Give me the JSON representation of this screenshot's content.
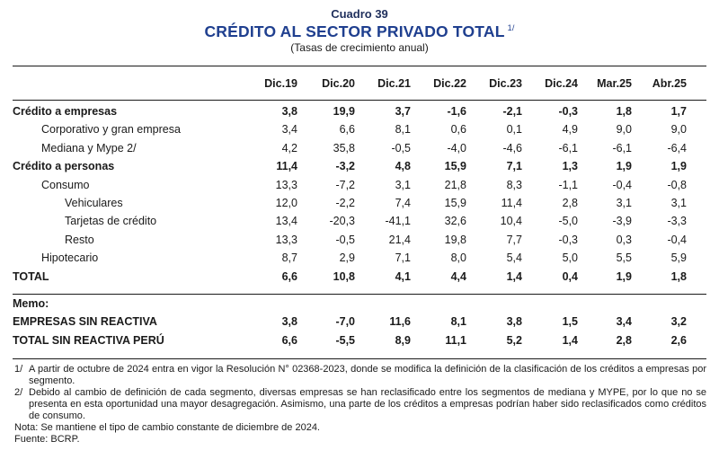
{
  "header": {
    "cuadro": "Cuadro 39",
    "title": "CRÉDITO AL SECTOR PRIVADO TOTAL",
    "title_note": "1/",
    "subtitle": "(Tasas de crecimiento anual)"
  },
  "table": {
    "columns": [
      "Dic.19",
      "Dic.20",
      "Dic.21",
      "Dic.22",
      "Dic.23",
      "Dic.24",
      "Mar.25",
      "Abr.25"
    ],
    "rows": [
      {
        "label": "Crédito a empresas",
        "values": [
          "3,8",
          "19,9",
          "3,7",
          "-1,6",
          "-2,1",
          "-0,3",
          "1,8",
          "1,7"
        ]
      },
      {
        "label": "Corporativo y gran empresa",
        "values": [
          "3,4",
          "6,6",
          "8,1",
          "0,6",
          "0,1",
          "4,9",
          "9,0",
          "9,0"
        ]
      },
      {
        "label": "Mediana y Mype 2/",
        "values": [
          "4,2",
          "35,8",
          "-0,5",
          "-4,0",
          "-4,6",
          "-6,1",
          "-6,1",
          "-6,4"
        ]
      },
      {
        "label": "Crédito a personas",
        "values": [
          "11,4",
          "-3,2",
          "4,8",
          "15,9",
          "7,1",
          "1,3",
          "1,9",
          "1,9"
        ]
      },
      {
        "label": "Consumo",
        "values": [
          "13,3",
          "-7,2",
          "3,1",
          "21,8",
          "8,3",
          "-1,1",
          "-0,4",
          "-0,8"
        ]
      },
      {
        "label": "Vehiculares",
        "values": [
          "12,0",
          "-2,2",
          "7,4",
          "15,9",
          "11,4",
          "2,8",
          "3,1",
          "3,1"
        ]
      },
      {
        "label": "Tarjetas de crédito",
        "values": [
          "13,4",
          "-20,3",
          "-41,1",
          "32,6",
          "10,4",
          "-5,0",
          "-3,9",
          "-3,3"
        ]
      },
      {
        "label": "Resto",
        "values": [
          "13,3",
          "-0,5",
          "21,4",
          "19,8",
          "7,7",
          "-0,3",
          "0,3",
          "-0,4"
        ]
      },
      {
        "label": "Hipotecario",
        "values": [
          "8,7",
          "2,9",
          "7,1",
          "8,0",
          "5,4",
          "5,0",
          "5,5",
          "5,9"
        ]
      },
      {
        "label": "TOTAL",
        "values": [
          "6,6",
          "10,8",
          "4,1",
          "4,4",
          "1,4",
          "0,4",
          "1,9",
          "1,8"
        ]
      }
    ],
    "memo_label": "Memo:",
    "memo_rows": [
      {
        "label": "EMPRESAS SIN REACTIVA",
        "values": [
          "3,8",
          "-7,0",
          "11,6",
          "8,1",
          "3,8",
          "1,5",
          "3,4",
          "3,2"
        ]
      },
      {
        "label": "TOTAL SIN REACTIVA PERÚ",
        "values": [
          "6,6",
          "-5,5",
          "8,9",
          "11,1",
          "5,2",
          "1,4",
          "2,8",
          "2,6"
        ]
      }
    ]
  },
  "notes": [
    {
      "mark": "1/",
      "text": "A partir de octubre de 2024 entra en vigor la Resolución N° 02368-2023, donde se modifica la definición de la clasificación de los créditos a empresas por segmento."
    },
    {
      "mark": "2/",
      "text": "Debido al cambio de definición de cada segmento, diversas empresas se han reclasificado entre los segmentos de mediana y MYPE, por lo que no se presenta en esta oportunidad una mayor desagregación. Asimismo, una parte de los créditos a empresas podrían haber sido reclasificados como créditos de consumo."
    }
  ],
  "nota": "Nota: Se mantiene el tipo de cambio constante de diciembre de 2024.",
  "fuente": "Fuente: BCRP."
}
